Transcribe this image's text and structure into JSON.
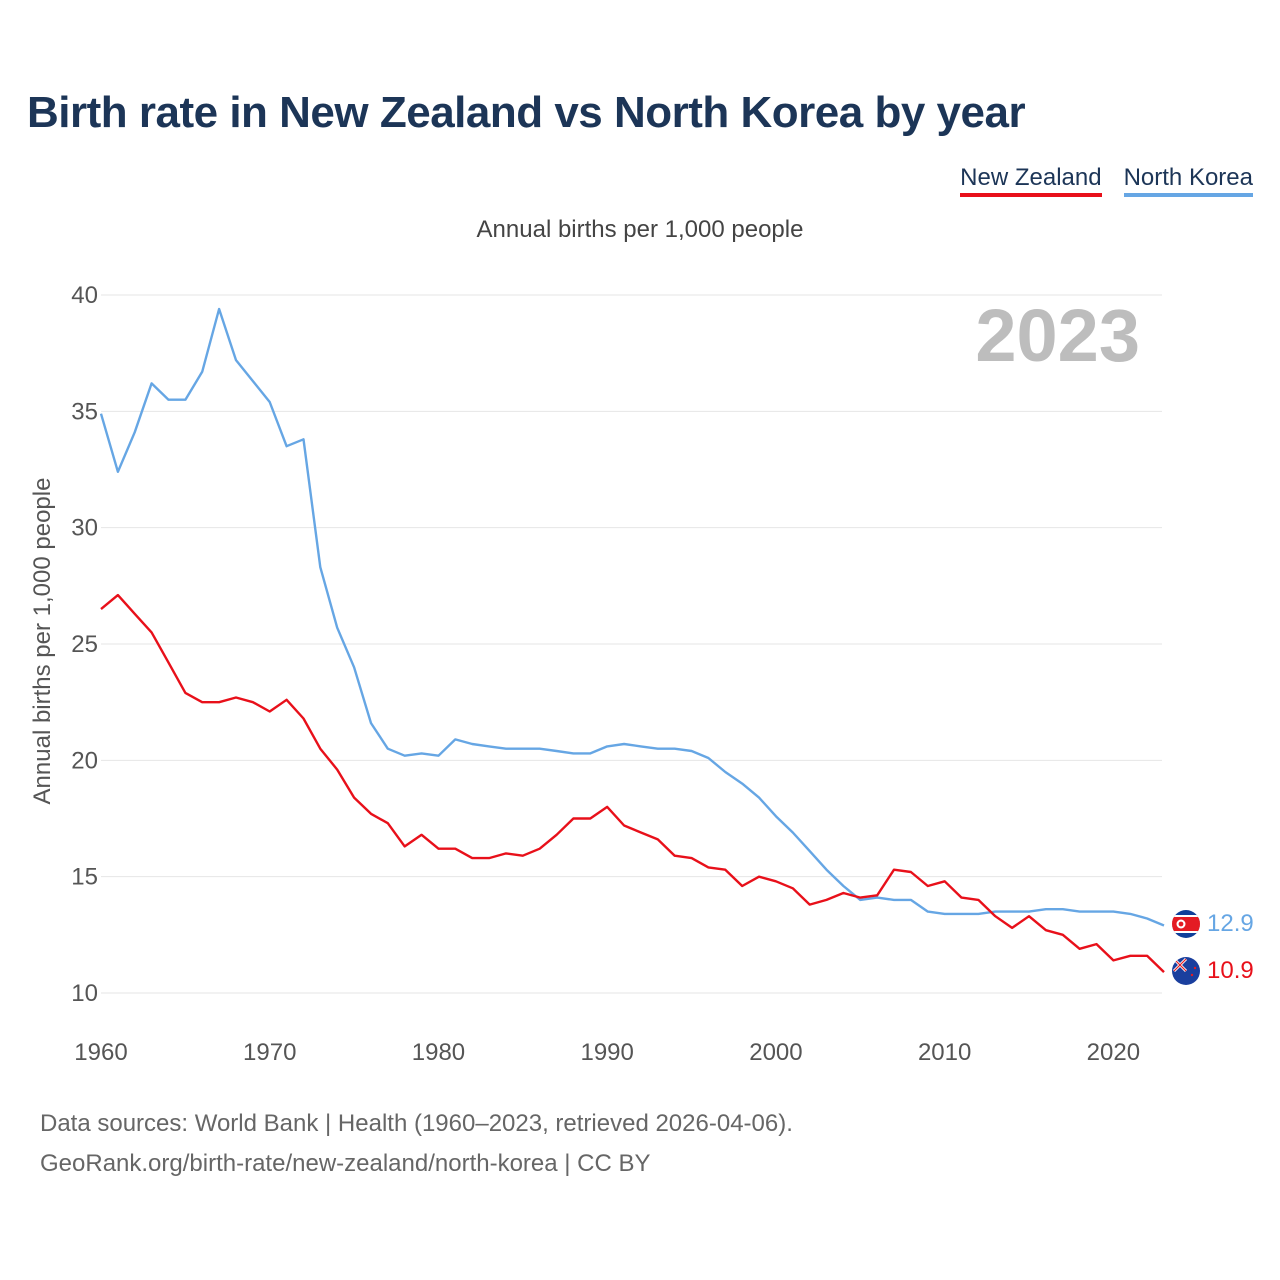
{
  "title": "Birth rate in New Zealand vs North Korea by year",
  "subtitle": "Annual births per 1,000 people",
  "legend": [
    {
      "name": "New Zealand",
      "color": "#e8101a"
    },
    {
      "name": "North Korea",
      "color": "#66a6e4"
    }
  ],
  "year_label": "2023",
  "footer": {
    "line1": "Data sources: World Bank | Health (1960–2023, retrieved 2026-04-06).",
    "line2": "GeoRank.org/birth-rate/new-zealand/north-korea | CC BY"
  },
  "chart_data": {
    "type": "line",
    "title": "Birth rate in New Zealand vs North Korea by year",
    "xlabel": "",
    "ylabel": "Annual births per 1,000 people",
    "xlim": [
      1960,
      2023
    ],
    "ylim": [
      10,
      40
    ],
    "x_ticks": [
      1960,
      1970,
      1980,
      1990,
      2000,
      2010,
      2020
    ],
    "y_ticks": [
      10,
      15,
      20,
      25,
      30,
      35,
      40
    ],
    "grid": true,
    "x": [
      1960,
      1961,
      1962,
      1963,
      1964,
      1965,
      1966,
      1967,
      1968,
      1969,
      1970,
      1971,
      1972,
      1973,
      1974,
      1975,
      1976,
      1977,
      1978,
      1979,
      1980,
      1981,
      1982,
      1983,
      1984,
      1985,
      1986,
      1987,
      1988,
      1989,
      1990,
      1991,
      1992,
      1993,
      1994,
      1995,
      1996,
      1997,
      1998,
      1999,
      2000,
      2001,
      2002,
      2003,
      2004,
      2005,
      2006,
      2007,
      2008,
      2009,
      2010,
      2011,
      2012,
      2013,
      2014,
      2015,
      2016,
      2017,
      2018,
      2019,
      2020,
      2021,
      2022,
      2023
    ],
    "series": [
      {
        "name": "New Zealand",
        "color": "#e8101a",
        "end_label": "10.9",
        "values": [
          26.5,
          27.1,
          26.3,
          25.5,
          24.2,
          22.9,
          22.5,
          22.5,
          22.7,
          22.5,
          22.1,
          22.6,
          21.8,
          20.5,
          19.6,
          18.4,
          17.7,
          17.3,
          16.3,
          16.8,
          16.2,
          16.2,
          15.8,
          15.8,
          16.0,
          15.9,
          16.2,
          16.8,
          17.5,
          17.5,
          18.0,
          17.2,
          16.9,
          16.6,
          15.9,
          15.8,
          15.4,
          15.3,
          14.6,
          15.0,
          14.8,
          14.5,
          13.8,
          14.0,
          14.3,
          14.1,
          14.2,
          15.3,
          15.2,
          14.6,
          14.8,
          14.1,
          14.0,
          13.3,
          12.8,
          13.3,
          12.7,
          12.5,
          11.9,
          12.1,
          11.4,
          11.6,
          11.6,
          10.9
        ]
      },
      {
        "name": "North Korea",
        "color": "#66a6e4",
        "end_label": "12.9",
        "values": [
          34.9,
          32.4,
          34.1,
          36.2,
          35.5,
          35.5,
          36.7,
          39.4,
          37.2,
          36.3,
          35.4,
          33.5,
          33.8,
          28.3,
          25.7,
          24.0,
          21.6,
          20.5,
          20.2,
          20.3,
          20.2,
          20.9,
          20.7,
          20.6,
          20.5,
          20.5,
          20.5,
          20.4,
          20.3,
          20.3,
          20.6,
          20.7,
          20.6,
          20.5,
          20.5,
          20.4,
          20.1,
          19.5,
          19.0,
          18.4,
          17.6,
          16.9,
          16.1,
          15.3,
          14.6,
          14.0,
          14.1,
          14.0,
          14.0,
          13.5,
          13.4,
          13.4,
          13.4,
          13.5,
          13.5,
          13.5,
          13.6,
          13.6,
          13.5,
          13.5,
          13.5,
          13.4,
          13.2,
          12.9
        ]
      }
    ]
  }
}
